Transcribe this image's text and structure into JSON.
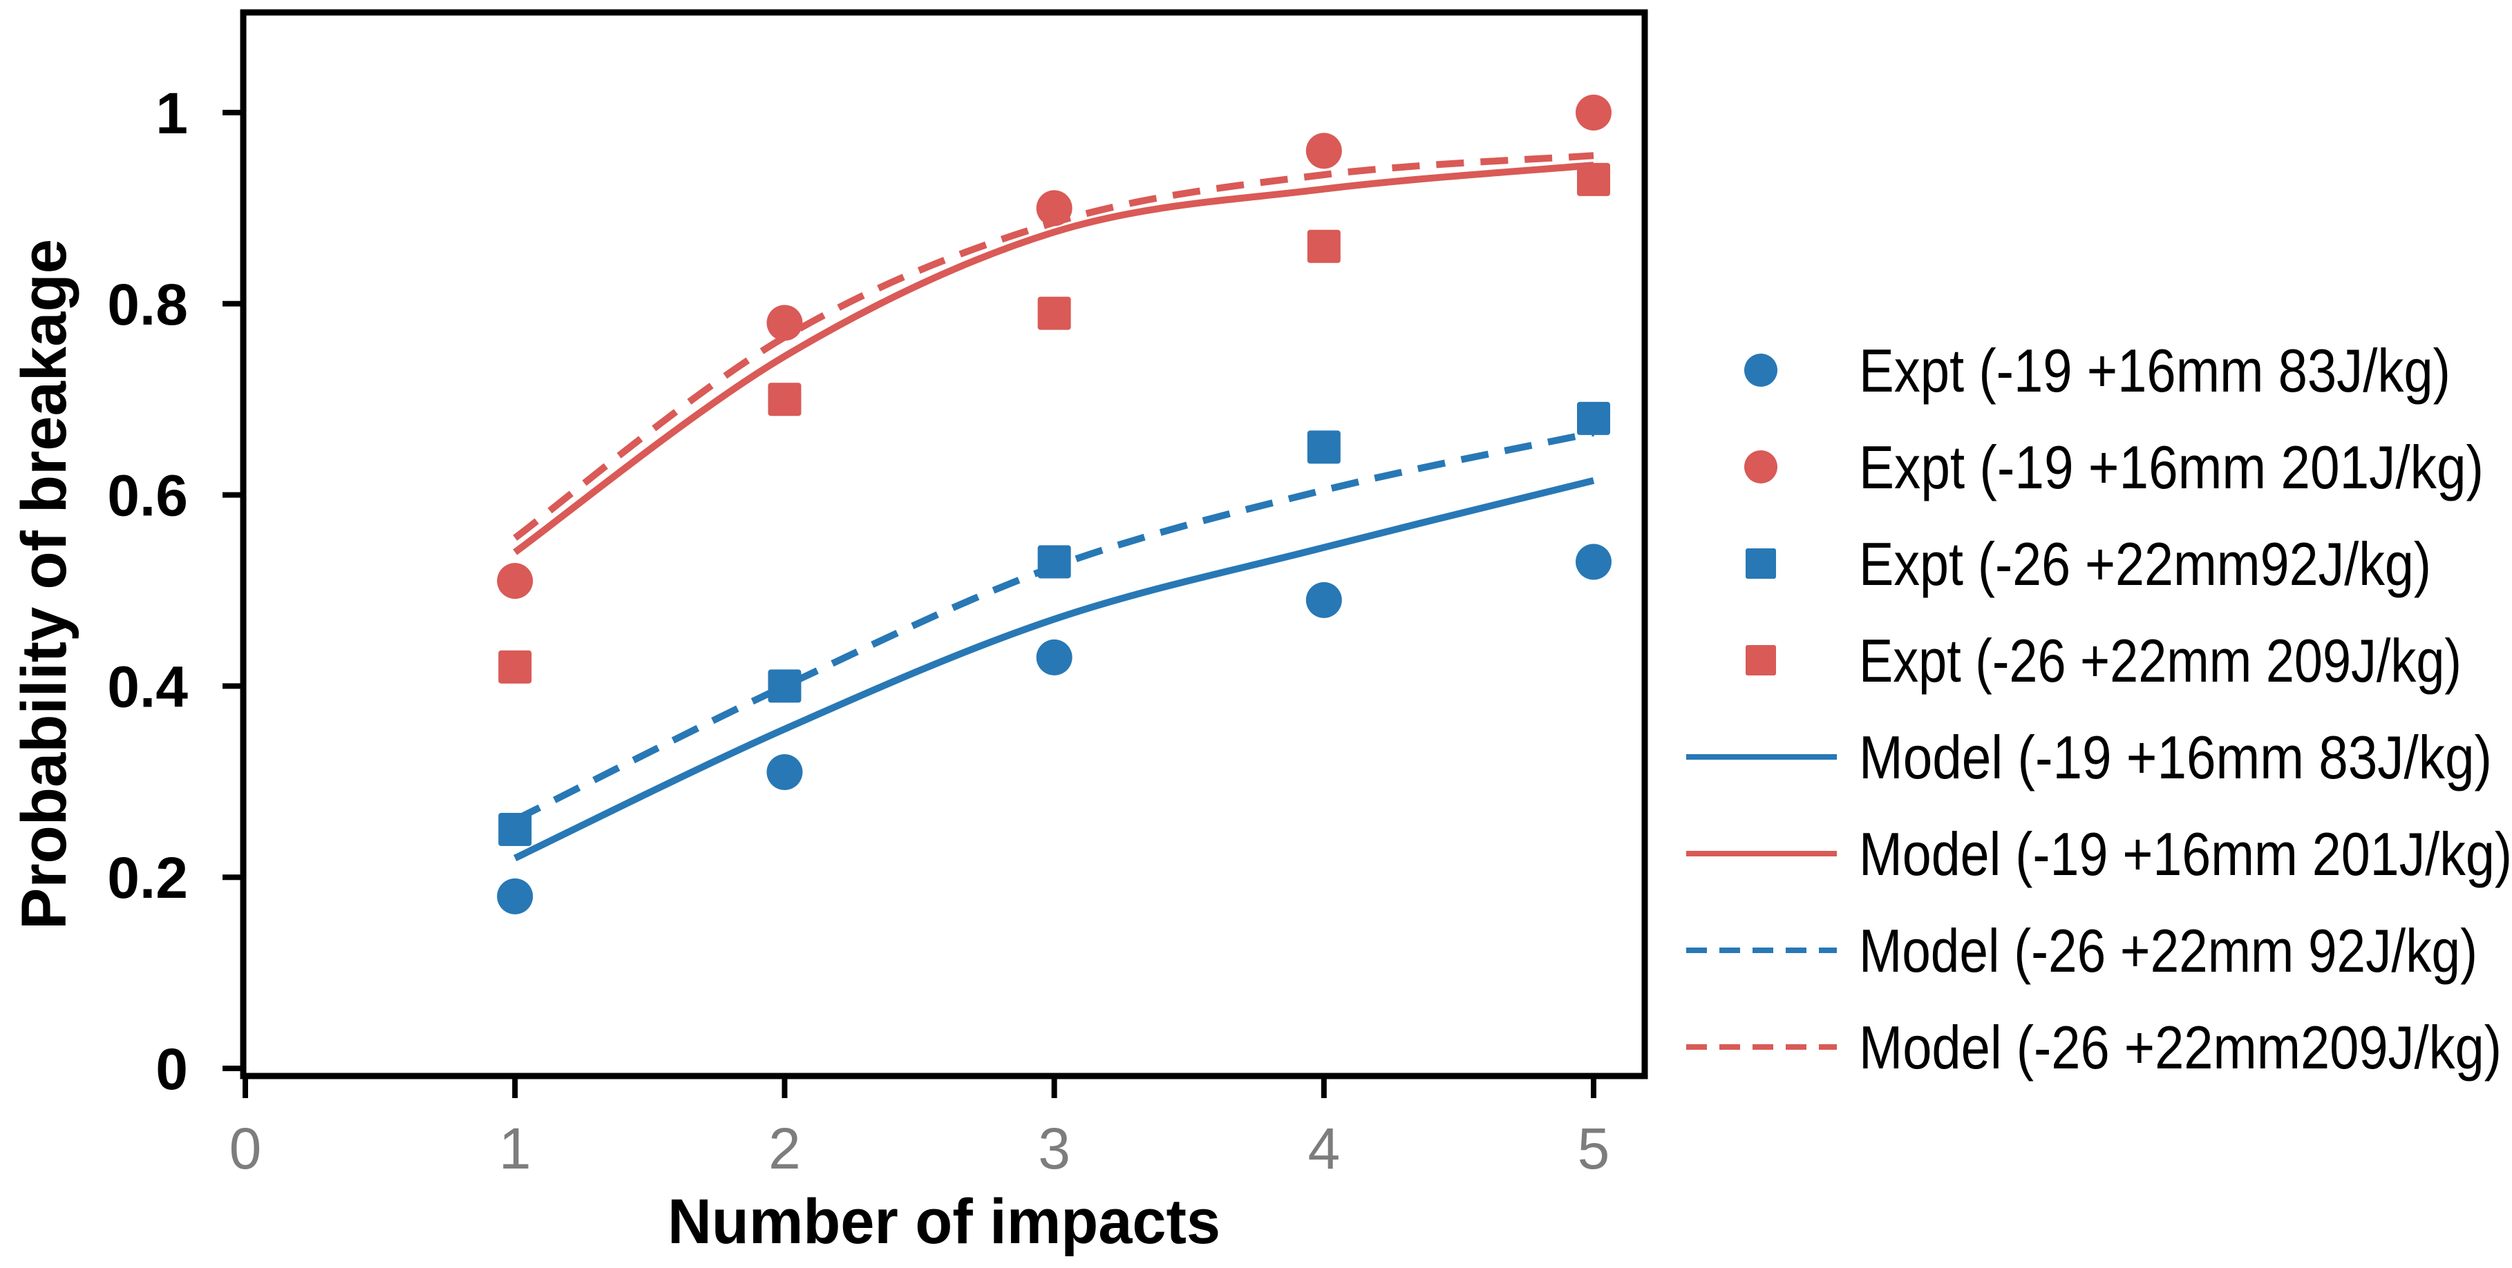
{
  "figure": {
    "background": "#FFFFFF"
  },
  "chart_data": {
    "type": "scatter",
    "title": "",
    "xlabel": "Number of impacts",
    "ylabel": "Probability of breakage",
    "x_tick_labels": [
      "0",
      "1",
      "2",
      "3",
      "4",
      "5"
    ],
    "x_tick_values": [
      0,
      1,
      2,
      3,
      4,
      5
    ],
    "y_tick_labels": [
      "0",
      "0.2",
      "0.4",
      "0.6",
      "0.8",
      "1"
    ],
    "y_tick_values": [
      0,
      0.2,
      0.4,
      0.6,
      0.8,
      1
    ],
    "xlim": [
      0,
      5.2
    ],
    "ylim": [
      0,
      1.11
    ],
    "grid": false,
    "legend_position": "right-outside",
    "axis_color": "#000000",
    "x_tick_label_color": "#7D7D7D",
    "y_tick_label_color": "#000000",
    "blue": "#2878B5",
    "red": "#D95A56",
    "x": [
      1,
      2,
      3,
      4,
      5
    ],
    "series": [
      {
        "name": "Expt (-19 +16mm 83J/kg)",
        "kind": "scatter",
        "marker": "circle",
        "color": "#2878B5",
        "values": [
          0.18,
          0.31,
          0.43,
          0.49,
          0.53
        ]
      },
      {
        "name": "Expt (-19 +16mm 201J/kg)",
        "kind": "scatter",
        "marker": "circle",
        "color": "#D95A56",
        "values": [
          0.51,
          0.78,
          0.9,
          0.96,
          1.0
        ]
      },
      {
        "name": "Expt (-26 +22mm92J/kg)",
        "kind": "scatter",
        "marker": "square",
        "color": "#2878B5",
        "values": [
          0.25,
          0.4,
          0.53,
          0.65,
          0.68
        ]
      },
      {
        "name": "Expt (-26 +22mm 209J/kg)",
        "kind": "scatter",
        "marker": "square",
        "color": "#D95A56",
        "values": [
          0.42,
          0.7,
          0.79,
          0.86,
          0.93
        ]
      },
      {
        "name": "Model (-19 +16mm 83J/kg)",
        "kind": "line",
        "dash": "solid",
        "color": "#2878B5",
        "values": [
          0.22,
          0.355,
          0.47,
          0.545,
          0.615
        ]
      },
      {
        "name": "Model (-19 +16mm 201J/kg)",
        "kind": "line",
        "dash": "solid",
        "color": "#D95A56",
        "values": [
          0.54,
          0.745,
          0.875,
          0.92,
          0.945
        ]
      },
      {
        "name": "Model (-26 +22mm 92J/kg)",
        "kind": "line",
        "dash": "dashed",
        "color": "#2878B5",
        "values": [
          0.26,
          0.4,
          0.525,
          0.605,
          0.665
        ]
      },
      {
        "name": "Model (-26 +22mm209J/kg)",
        "kind": "line",
        "dash": "dashed",
        "color": "#D95A56",
        "values": [
          0.555,
          0.765,
          0.885,
          0.935,
          0.955
        ]
      }
    ]
  }
}
